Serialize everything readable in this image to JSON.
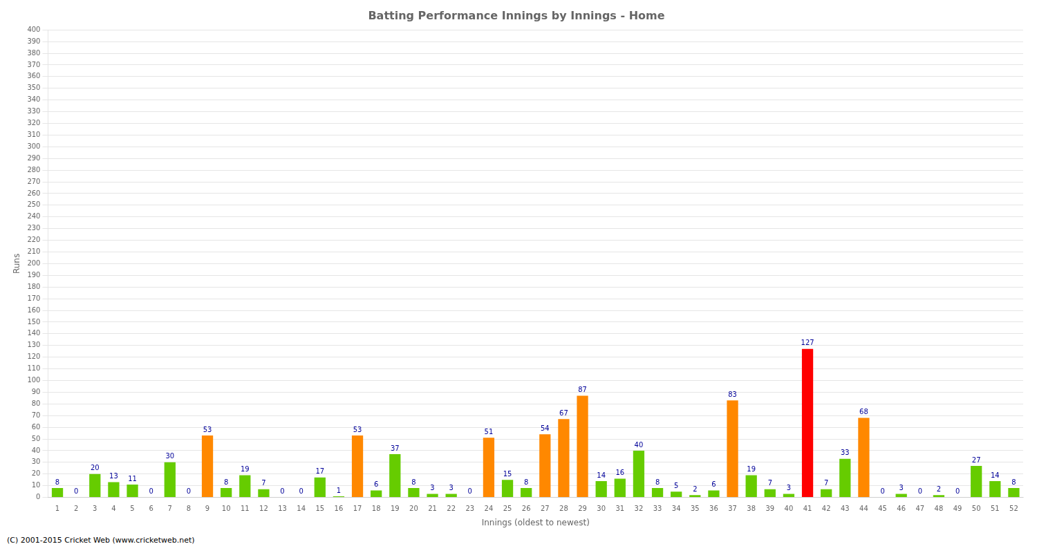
{
  "chart_data": {
    "type": "bar",
    "title": "Batting Performance Innings by Innings - Home",
    "xlabel": "Innings (oldest to newest)",
    "ylabel": "Runs",
    "footer": "(C) 2001-2015 Cricket Web (www.cricketweb.net)",
    "categories": [
      "1",
      "2",
      "3",
      "4",
      "5",
      "6",
      "7",
      "8",
      "9",
      "10",
      "11",
      "12",
      "13",
      "14",
      "15",
      "16",
      "17",
      "18",
      "19",
      "20",
      "21",
      "22",
      "23",
      "24",
      "25",
      "26",
      "27",
      "28",
      "29",
      "30",
      "31",
      "32",
      "33",
      "34",
      "35",
      "36",
      "37",
      "38",
      "39",
      "40",
      "41",
      "42",
      "43",
      "44",
      "45",
      "46",
      "47",
      "48",
      "49",
      "50",
      "51",
      "52"
    ],
    "values": [
      8,
      0,
      20,
      13,
      11,
      0,
      30,
      0,
      53,
      8,
      19,
      7,
      0,
      0,
      17,
      1,
      53,
      6,
      37,
      8,
      3,
      3,
      0,
      51,
      15,
      8,
      54,
      67,
      87,
      14,
      16,
      40,
      8,
      5,
      2,
      6,
      83,
      19,
      7,
      3,
      127,
      7,
      33,
      68,
      0,
      3,
      0,
      2,
      0,
      27,
      14,
      8
    ],
    "colors": [
      "#66cc00",
      "#66cc00",
      "#66cc00",
      "#66cc00",
      "#66cc00",
      "#66cc00",
      "#66cc00",
      "#66cc00",
      "#ff8800",
      "#66cc00",
      "#66cc00",
      "#66cc00",
      "#66cc00",
      "#66cc00",
      "#66cc00",
      "#66cc00",
      "#ff8800",
      "#66cc00",
      "#66cc00",
      "#66cc00",
      "#66cc00",
      "#66cc00",
      "#66cc00",
      "#ff8800",
      "#66cc00",
      "#66cc00",
      "#ff8800",
      "#ff8800",
      "#ff8800",
      "#66cc00",
      "#66cc00",
      "#66cc00",
      "#66cc00",
      "#66cc00",
      "#66cc00",
      "#66cc00",
      "#ff8800",
      "#66cc00",
      "#66cc00",
      "#66cc00",
      "#ff0000",
      "#66cc00",
      "#66cc00",
      "#ff8800",
      "#66cc00",
      "#66cc00",
      "#66cc00",
      "#66cc00",
      "#66cc00",
      "#66cc00",
      "#66cc00",
      "#66cc00"
    ],
    "ylim": [
      0,
      400
    ],
    "yticks": [
      0,
      10,
      20,
      30,
      40,
      50,
      60,
      70,
      80,
      90,
      100,
      110,
      120,
      130,
      140,
      150,
      160,
      170,
      180,
      190,
      200,
      210,
      220,
      230,
      240,
      250,
      260,
      270,
      280,
      290,
      300,
      310,
      320,
      330,
      340,
      350,
      360,
      370,
      380,
      390,
      400
    ],
    "grid": true,
    "data_labels": true
  }
}
